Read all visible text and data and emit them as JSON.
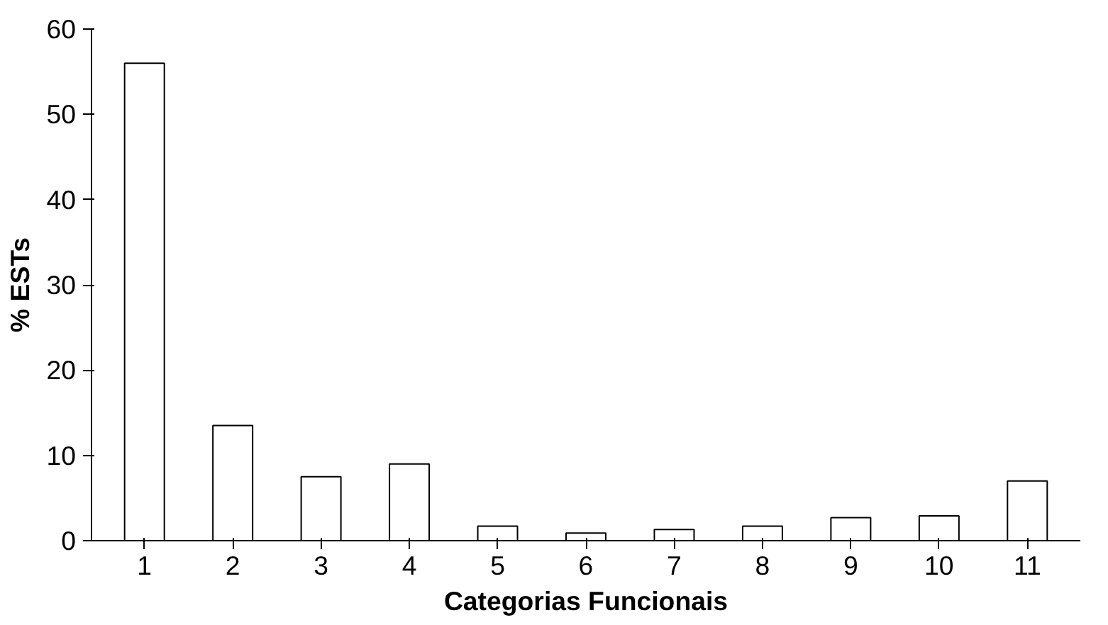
{
  "chart_data": {
    "type": "bar",
    "xlabel": "Categorias Funcionais",
    "ylabel": "% ESTs",
    "categories": [
      "1",
      "2",
      "3",
      "4",
      "5",
      "6",
      "7",
      "8",
      "9",
      "10",
      "11"
    ],
    "values": [
      56,
      13.5,
      7.5,
      9,
      1.7,
      0.9,
      1.3,
      1.7,
      2.7,
      2.9,
      7
    ],
    "color": "#ffffff",
    "ylim": [
      0,
      60
    ],
    "yticks": [
      0,
      10,
      20,
      30,
      40,
      50,
      60
    ],
    "grid": false
  }
}
